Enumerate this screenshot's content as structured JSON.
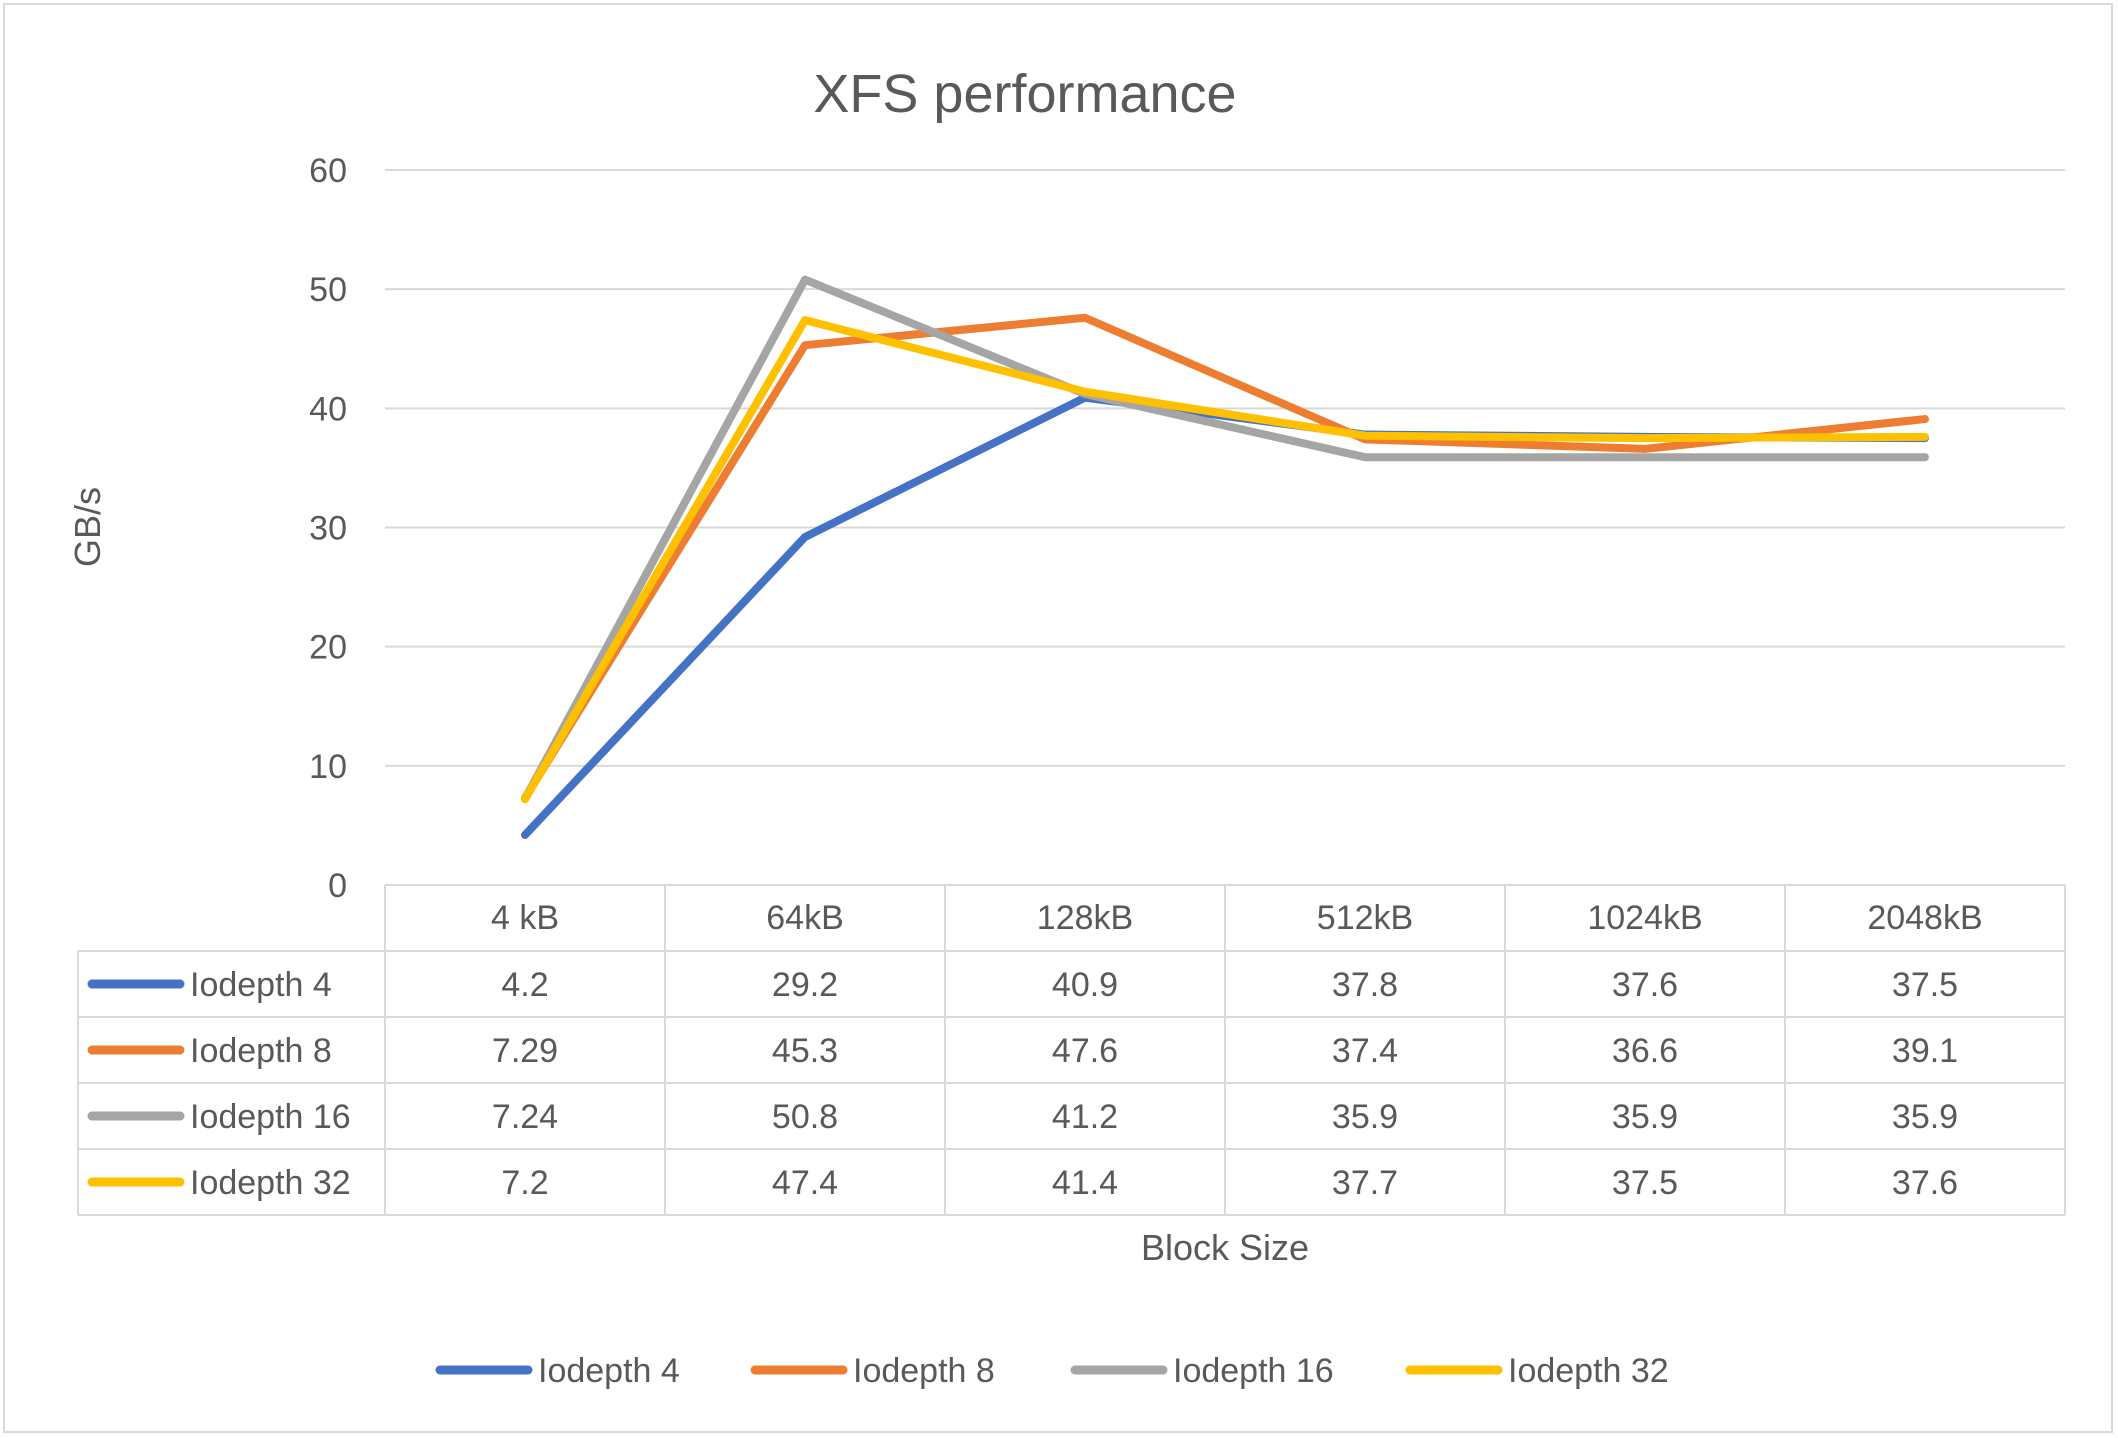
{
  "chart_data": {
    "type": "line",
    "title": "XFS performance",
    "xlabel": "Block Size",
    "ylabel": "GB/s",
    "ylim": [
      0,
      60
    ],
    "yticks": [
      0,
      10,
      20,
      30,
      40,
      50,
      60
    ],
    "grid": true,
    "legend_position": "bottom",
    "data_table": true,
    "categories": [
      "4 kB",
      "64kB",
      "128kB",
      "512kB",
      "1024kB",
      "2048kB"
    ],
    "series": [
      {
        "name": "Iodepth 4",
        "color": "#4472C4",
        "values": [
          4.2,
          29.2,
          40.9,
          37.8,
          37.6,
          37.5
        ]
      },
      {
        "name": "Iodepth 8",
        "color": "#ED7D31",
        "values": [
          7.29,
          45.3,
          47.6,
          37.4,
          36.6,
          39.1
        ]
      },
      {
        "name": "Iodepth 16",
        "color": "#A5A5A5",
        "values": [
          7.24,
          50.8,
          41.2,
          35.9,
          35.9,
          35.9
        ]
      },
      {
        "name": "Iodepth 32",
        "color": "#FFC000",
        "values": [
          7.2,
          47.4,
          41.4,
          37.7,
          37.5,
          37.6
        ]
      }
    ]
  }
}
